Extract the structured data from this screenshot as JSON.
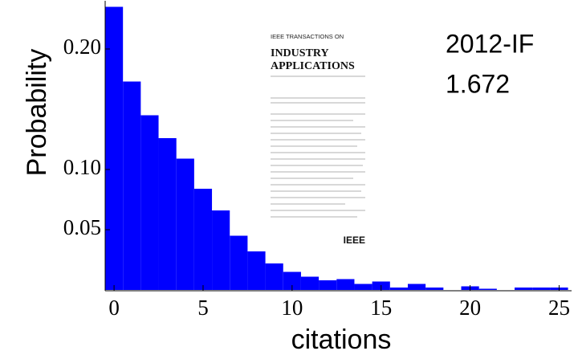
{
  "chart_data": {
    "type": "histogram",
    "xlabel": "citations",
    "ylabel": "Probability",
    "bins": [
      -0.5,
      0.5,
      1.5,
      2.5,
      3.5,
      4.5,
      5.5,
      6.5,
      7.5,
      8.5,
      9.5,
      10.5,
      11.5,
      12.5,
      13.5,
      14.5,
      15.5,
      16.5,
      17.5,
      18.5,
      19.5,
      20.5,
      21.5,
      22.5,
      23.5,
      24.5,
      25.5
    ],
    "values": [
      0.235,
      0.173,
      0.145,
      0.126,
      0.109,
      0.084,
      0.066,
      0.045,
      0.032,
      0.022,
      0.015,
      0.011,
      0.008,
      0.009,
      0.005,
      0.007,
      0.002,
      0.005,
      0.002,
      0,
      0.003,
      0.001,
      0,
      0.002,
      0.002,
      0.002
    ],
    "color": "#0000ff",
    "xlim": [
      -0.5,
      25.7
    ],
    "ylim": [
      0,
      0.24
    ],
    "xticks": [
      0,
      5,
      10,
      15,
      20,
      25
    ],
    "yticks": [
      {
        "value": 0.05,
        "label": "0.05"
      },
      {
        "value": 0.1,
        "label": "0.10"
      },
      {
        "value": 0.2,
        "label": "0.20"
      }
    ],
    "annotations": [
      "2012-IF",
      "1.672"
    ],
    "inset": {
      "header": "IEEE TRANSACTIONS ON",
      "title_1": "INDUSTRY",
      "title_2": "APPLICATIONS",
      "logo": "IEEE"
    }
  }
}
